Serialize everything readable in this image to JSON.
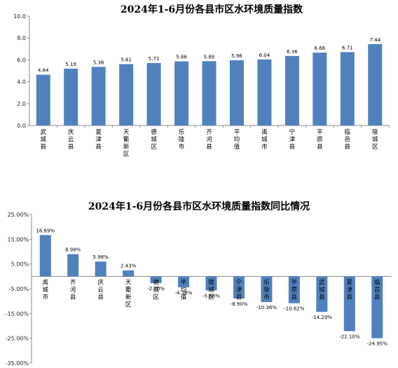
{
  "chart_data": [
    {
      "type": "bar",
      "title": "2024年1-6月份各县市区水环境质量指数",
      "categories": [
        "武城县",
        "庆云县",
        "夏津县",
        "天衢新区",
        "德城区",
        "乐陵市",
        "齐河县",
        "平均值",
        "禹城市",
        "宁津县",
        "平原县",
        "临邑县",
        "陵城区"
      ],
      "values": [
        4.64,
        5.19,
        5.36,
        5.61,
        5.71,
        5.86,
        5.88,
        5.96,
        6.04,
        6.36,
        6.66,
        6.71,
        7.44
      ],
      "value_labels": [
        "4.64",
        "5.19",
        "5.36",
        "5.61",
        "5.71",
        "5.86",
        "5.88",
        "5.96",
        "6.04",
        "6.36",
        "6.66",
        "6.71",
        "7.44"
      ],
      "ylim": [
        0,
        10
      ],
      "yticks": [
        "0.0",
        "2.0",
        "4.0",
        "6.0",
        "8.0",
        "10.0"
      ],
      "xlabel": "",
      "ylabel": "",
      "color": "#4f81bd"
    },
    {
      "type": "bar",
      "title": "2024年1-6月份各县市区水环境质量指数同比情况",
      "categories": [
        "禹城市",
        "齐河县",
        "庆云县",
        "天衢新区",
        "德城区",
        "平均值",
        "陵城区",
        "宁津县",
        "乐陵市",
        "平原县",
        "武城县",
        "夏津县",
        "临邑县"
      ],
      "values": [
        16.69,
        8.98,
        5.98,
        2.43,
        -2.7,
        -4.38,
        -5.68,
        -8.9,
        -10.36,
        -10.82,
        -14.29,
        -22.1,
        -24.95
      ],
      "value_labels": [
        "16.69%",
        "8.98%",
        "5.98%",
        "2.43%",
        "-2.70%",
        "-4.38%",
        "-5.68%",
        "-8.90%",
        "-10.36%",
        "-10.82%",
        "-14.29%",
        "-22.10%",
        "-24.95%"
      ],
      "ylim": [
        -35,
        25
      ],
      "yticks": [
        "25.00%",
        "15.00%",
        "5.00%",
        "-5.00%",
        "-15.00%",
        "-25.00%",
        "-35.00%"
      ],
      "xlabel": "",
      "ylabel": "",
      "color": "#4f81bd"
    }
  ]
}
